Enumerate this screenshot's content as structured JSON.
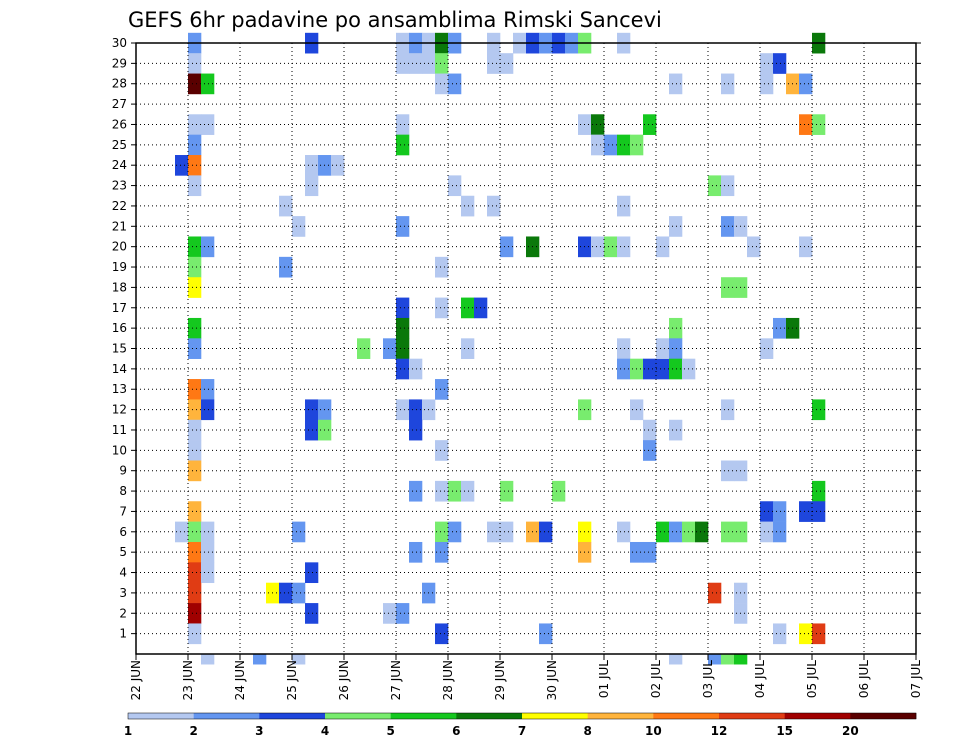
{
  "chart_data": {
    "type": "heatmap",
    "title": "GEFS 6hr padavine po ansamblima Rimski Sancevi",
    "x_tick_labels": [
      "22 JUN",
      "23 JUN",
      "24 JUN",
      "25 JUN",
      "26 JUN",
      "27 JUN",
      "28 JUN",
      "29 JUN",
      "30 JUN",
      "01 JUL",
      "02 JUL",
      "03 JUL",
      "04 JUL",
      "05 JUL",
      "06 JUL",
      "07 JUL"
    ],
    "y_tick_labels": [
      "1",
      "2",
      "3",
      "4",
      "5",
      "6",
      "7",
      "8",
      "9",
      "10",
      "11",
      "12",
      "13",
      "14",
      "15",
      "16",
      "17",
      "18",
      "19",
      "20",
      "21",
      "22",
      "23",
      "24",
      "25",
      "26",
      "27",
      "28",
      "29",
      "30"
    ],
    "x_unit": "6-hour step (4 per day), starting 22 JUN",
    "y_range": [
      0,
      30
    ],
    "grid": true,
    "colorbar": {
      "labels": [
        "1",
        "2",
        "3",
        "4",
        "5",
        "6",
        "7",
        "8",
        "10",
        "12",
        "15",
        "20"
      ],
      "colors": [
        "#b4c8f0",
        "#6496f0",
        "#1e46dc",
        "#78ec6e",
        "#14c81e",
        "#0a780a",
        "#ffff00",
        "#ffb43c",
        "#ff7814",
        "#e03c14",
        "#a00000",
        "#5a0000"
      ]
    },
    "color_scale_note": "c = color index 0..11 into colorbar.colors",
    "cells": [
      {
        "x": 4,
        "y": 30,
        "c": 1
      },
      {
        "x": 4,
        "y": 29,
        "c": 0
      },
      {
        "x": 4,
        "y": 28,
        "c": 11
      },
      {
        "x": 5,
        "y": 28,
        "c": 4
      },
      {
        "x": 4,
        "y": 26,
        "c": 0
      },
      {
        "x": 5,
        "y": 26,
        "c": 0
      },
      {
        "x": 4,
        "y": 25,
        "c": 1
      },
      {
        "x": 3,
        "y": 24,
        "c": 2
      },
      {
        "x": 4,
        "y": 24,
        "c": 8
      },
      {
        "x": 4,
        "y": 23,
        "c": 0
      },
      {
        "x": 4,
        "y": 20,
        "c": 4
      },
      {
        "x": 5,
        "y": 20,
        "c": 1
      },
      {
        "x": 4,
        "y": 19,
        "c": 3
      },
      {
        "x": 4,
        "y": 18,
        "c": 6
      },
      {
        "x": 4,
        "y": 16,
        "c": 4
      },
      {
        "x": 4,
        "y": 15,
        "c": 1
      },
      {
        "x": 4,
        "y": 13,
        "c": 8
      },
      {
        "x": 5,
        "y": 13,
        "c": 1
      },
      {
        "x": 4,
        "y": 12,
        "c": 7
      },
      {
        "x": 5,
        "y": 12,
        "c": 2
      },
      {
        "x": 4,
        "y": 11,
        "c": 0
      },
      {
        "x": 4,
        "y": 10,
        "c": 0
      },
      {
        "x": 4,
        "y": 9,
        "c": 7
      },
      {
        "x": 4,
        "y": 7,
        "c": 7
      },
      {
        "x": 3,
        "y": 6,
        "c": 0
      },
      {
        "x": 4,
        "y": 6,
        "c": 3
      },
      {
        "x": 5,
        "y": 6,
        "c": 0
      },
      {
        "x": 4,
        "y": 5,
        "c": 8
      },
      {
        "x": 5,
        "y": 5,
        "c": 0
      },
      {
        "x": 4,
        "y": 4,
        "c": 9
      },
      {
        "x": 5,
        "y": 4,
        "c": 0
      },
      {
        "x": 4,
        "y": 3,
        "c": 9
      },
      {
        "x": 4,
        "y": 2,
        "c": 10
      },
      {
        "x": 4,
        "y": 1,
        "c": 0
      },
      {
        "x": 5,
        "y": 0,
        "c": 0
      },
      {
        "x": 9,
        "y": 0,
        "c": 1
      },
      {
        "x": 11,
        "y": 22,
        "c": 0
      },
      {
        "x": 12,
        "y": 21,
        "c": 0
      },
      {
        "x": 11,
        "y": 19,
        "c": 1
      },
      {
        "x": 12,
        "y": 6,
        "c": 1
      },
      {
        "x": 10,
        "y": 3,
        "c": 6
      },
      {
        "x": 11,
        "y": 3,
        "c": 2
      },
      {
        "x": 12,
        "y": 3,
        "c": 1
      },
      {
        "x": 12,
        "y": 0,
        "c": 0
      },
      {
        "x": 13,
        "y": 30,
        "c": 2
      },
      {
        "x": 13,
        "y": 24,
        "c": 0
      },
      {
        "x": 14,
        "y": 24,
        "c": 1
      },
      {
        "x": 15,
        "y": 24,
        "c": 0
      },
      {
        "x": 13,
        "y": 23,
        "c": 0
      },
      {
        "x": 13,
        "y": 12,
        "c": 2
      },
      {
        "x": 14,
        "y": 12,
        "c": 1
      },
      {
        "x": 13,
        "y": 11,
        "c": 2
      },
      {
        "x": 14,
        "y": 11,
        "c": 3
      },
      {
        "x": 13,
        "y": 4,
        "c": 2
      },
      {
        "x": 13,
        "y": 2,
        "c": 2
      },
      {
        "x": 17,
        "y": 15,
        "c": 3
      },
      {
        "x": 19,
        "y": 15,
        "c": 1
      },
      {
        "x": 20,
        "y": 30,
        "c": 0
      },
      {
        "x": 21,
        "y": 30,
        "c": 1
      },
      {
        "x": 22,
        "y": 30,
        "c": 0
      },
      {
        "x": 23,
        "y": 30,
        "c": 5
      },
      {
        "x": 24,
        "y": 30,
        "c": 1
      },
      {
        "x": 20,
        "y": 29,
        "c": 0
      },
      {
        "x": 21,
        "y": 29,
        "c": 0
      },
      {
        "x": 22,
        "y": 29,
        "c": 0
      },
      {
        "x": 23,
        "y": 29,
        "c": 3
      },
      {
        "x": 23,
        "y": 28,
        "c": 0
      },
      {
        "x": 24,
        "y": 28,
        "c": 1
      },
      {
        "x": 20,
        "y": 26,
        "c": 0
      },
      {
        "x": 20,
        "y": 25,
        "c": 4
      },
      {
        "x": 24,
        "y": 23,
        "c": 0
      },
      {
        "x": 25,
        "y": 22,
        "c": 0
      },
      {
        "x": 20,
        "y": 21,
        "c": 1
      },
      {
        "x": 23,
        "y": 19,
        "c": 0
      },
      {
        "x": 20,
        "y": 17,
        "c": 2
      },
      {
        "x": 23,
        "y": 17,
        "c": 0
      },
      {
        "x": 25,
        "y": 17,
        "c": 4
      },
      {
        "x": 26,
        "y": 17,
        "c": 2
      },
      {
        "x": 20,
        "y": 16,
        "c": 5
      },
      {
        "x": 20,
        "y": 15,
        "c": 5
      },
      {
        "x": 25,
        "y": 15,
        "c": 0
      },
      {
        "x": 20,
        "y": 14,
        "c": 2
      },
      {
        "x": 21,
        "y": 14,
        "c": 0
      },
      {
        "x": 23,
        "y": 13,
        "c": 1
      },
      {
        "x": 20,
        "y": 12,
        "c": 0
      },
      {
        "x": 21,
        "y": 12,
        "c": 2
      },
      {
        "x": 22,
        "y": 12,
        "c": 0
      },
      {
        "x": 21,
        "y": 11,
        "c": 2
      },
      {
        "x": 23,
        "y": 10,
        "c": 0
      },
      {
        "x": 21,
        "y": 8,
        "c": 1
      },
      {
        "x": 23,
        "y": 8,
        "c": 0
      },
      {
        "x": 24,
        "y": 8,
        "c": 3
      },
      {
        "x": 25,
        "y": 8,
        "c": 0
      },
      {
        "x": 23,
        "y": 6,
        "c": 3
      },
      {
        "x": 24,
        "y": 6,
        "c": 1
      },
      {
        "x": 21,
        "y": 5,
        "c": 1
      },
      {
        "x": 23,
        "y": 5,
        "c": 1
      },
      {
        "x": 22,
        "y": 3,
        "c": 1
      },
      {
        "x": 19,
        "y": 2,
        "c": 0
      },
      {
        "x": 20,
        "y": 2,
        "c": 1
      },
      {
        "x": 23,
        "y": 1,
        "c": 2
      },
      {
        "x": 27,
        "y": 30,
        "c": 0
      },
      {
        "x": 27,
        "y": 29,
        "c": 0
      },
      {
        "x": 28,
        "y": 29,
        "c": 0
      },
      {
        "x": 27,
        "y": 22,
        "c": 0
      },
      {
        "x": 28,
        "y": 20,
        "c": 1
      },
      {
        "x": 28,
        "y": 8,
        "c": 3
      },
      {
        "x": 27,
        "y": 6,
        "c": 0
      },
      {
        "x": 28,
        "y": 6,
        "c": 0
      },
      {
        "x": 29,
        "y": 30,
        "c": 0
      },
      {
        "x": 30,
        "y": 30,
        "c": 2
      },
      {
        "x": 31,
        "y": 30,
        "c": 1
      },
      {
        "x": 30,
        "y": 20,
        "c": 5
      },
      {
        "x": 30,
        "y": 6,
        "c": 7
      },
      {
        "x": 31,
        "y": 6,
        "c": 2
      },
      {
        "x": 32,
        "y": 8,
        "c": 3
      },
      {
        "x": 31,
        "y": 1,
        "c": 1
      },
      {
        "x": 32,
        "y": 30,
        "c": 2
      },
      {
        "x": 33,
        "y": 30,
        "c": 1
      },
      {
        "x": 34,
        "y": 30,
        "c": 3
      },
      {
        "x": 34,
        "y": 26,
        "c": 0
      },
      {
        "x": 35,
        "y": 26,
        "c": 5
      },
      {
        "x": 35,
        "y": 25,
        "c": 0
      },
      {
        "x": 34,
        "y": 20,
        "c": 2
      },
      {
        "x": 35,
        "y": 20,
        "c": 0
      },
      {
        "x": 34,
        "y": 12,
        "c": 3
      },
      {
        "x": 34,
        "y": 6,
        "c": 6
      },
      {
        "x": 34,
        "y": 5,
        "c": 7
      },
      {
        "x": 37,
        "y": 30,
        "c": 0
      },
      {
        "x": 36,
        "y": 25,
        "c": 1
      },
      {
        "x": 37,
        "y": 25,
        "c": 4
      },
      {
        "x": 38,
        "y": 25,
        "c": 3
      },
      {
        "x": 39,
        "y": 26,
        "c": 4
      },
      {
        "x": 37,
        "y": 22,
        "c": 0
      },
      {
        "x": 36,
        "y": 20,
        "c": 3
      },
      {
        "x": 37,
        "y": 20,
        "c": 0
      },
      {
        "x": 37,
        "y": 15,
        "c": 0
      },
      {
        "x": 37,
        "y": 14,
        "c": 1
      },
      {
        "x": 38,
        "y": 14,
        "c": 3
      },
      {
        "x": 39,
        "y": 14,
        "c": 2
      },
      {
        "x": 40,
        "y": 14,
        "c": 2
      },
      {
        "x": 38,
        "y": 12,
        "c": 0
      },
      {
        "x": 39,
        "y": 11,
        "c": 0
      },
      {
        "x": 38,
        "y": 5,
        "c": 1
      },
      {
        "x": 39,
        "y": 5,
        "c": 1
      },
      {
        "x": 37,
        "y": 6,
        "c": 0
      },
      {
        "x": 39,
        "y": 10,
        "c": 1
      },
      {
        "x": 41,
        "y": 28,
        "c": 0
      },
      {
        "x": 41,
        "y": 21,
        "c": 0
      },
      {
        "x": 40,
        "y": 20,
        "c": 0
      },
      {
        "x": 41,
        "y": 16,
        "c": 3
      },
      {
        "x": 40,
        "y": 15,
        "c": 0
      },
      {
        "x": 41,
        "y": 15,
        "c": 1
      },
      {
        "x": 41,
        "y": 14,
        "c": 4
      },
      {
        "x": 42,
        "y": 14,
        "c": 0
      },
      {
        "x": 40,
        "y": 6,
        "c": 4
      },
      {
        "x": 41,
        "y": 6,
        "c": 1
      },
      {
        "x": 42,
        "y": 6,
        "c": 3
      },
      {
        "x": 43,
        "y": 6,
        "c": 5
      },
      {
        "x": 41,
        "y": 0,
        "c": 0
      },
      {
        "x": 41,
        "y": 11,
        "c": 0
      },
      {
        "x": 45,
        "y": 28,
        "c": 0
      },
      {
        "x": 44,
        "y": 23,
        "c": 3
      },
      {
        "x": 45,
        "y": 23,
        "c": 0
      },
      {
        "x": 45,
        "y": 21,
        "c": 1
      },
      {
        "x": 46,
        "y": 21,
        "c": 0
      },
      {
        "x": 47,
        "y": 20,
        "c": 0
      },
      {
        "x": 45,
        "y": 18,
        "c": 3
      },
      {
        "x": 46,
        "y": 18,
        "c": 3
      },
      {
        "x": 45,
        "y": 12,
        "c": 0
      },
      {
        "x": 45,
        "y": 9,
        "c": 0
      },
      {
        "x": 46,
        "y": 9,
        "c": 0
      },
      {
        "x": 45,
        "y": 6,
        "c": 3
      },
      {
        "x": 46,
        "y": 6,
        "c": 3
      },
      {
        "x": 44,
        "y": 3,
        "c": 9
      },
      {
        "x": 46,
        "y": 3,
        "c": 0
      },
      {
        "x": 46,
        "y": 2,
        "c": 0
      },
      {
        "x": 44,
        "y": 0,
        "c": 1
      },
      {
        "x": 45,
        "y": 0,
        "c": 3
      },
      {
        "x": 46,
        "y": 0,
        "c": 4
      },
      {
        "x": 48,
        "y": 29,
        "c": 0
      },
      {
        "x": 49,
        "y": 29,
        "c": 2
      },
      {
        "x": 48,
        "y": 28,
        "c": 0
      },
      {
        "x": 50,
        "y": 28,
        "c": 7
      },
      {
        "x": 51,
        "y": 28,
        "c": 1
      },
      {
        "x": 51,
        "y": 26,
        "c": 8
      },
      {
        "x": 51,
        "y": 20,
        "c": 0
      },
      {
        "x": 49,
        "y": 16,
        "c": 1
      },
      {
        "x": 50,
        "y": 16,
        "c": 5
      },
      {
        "x": 48,
        "y": 15,
        "c": 0
      },
      {
        "x": 48,
        "y": 7,
        "c": 2
      },
      {
        "x": 49,
        "y": 7,
        "c": 1
      },
      {
        "x": 48,
        "y": 6,
        "c": 0
      },
      {
        "x": 49,
        "y": 6,
        "c": 1
      },
      {
        "x": 51,
        "y": 7,
        "c": 2
      },
      {
        "x": 49,
        "y": 1,
        "c": 0
      },
      {
        "x": 51,
        "y": 1,
        "c": 6
      },
      {
        "x": 52,
        "y": 1,
        "c": 9
      },
      {
        "x": 52,
        "y": 30,
        "c": 5
      },
      {
        "x": 52,
        "y": 26,
        "c": 3
      },
      {
        "x": 52,
        "y": 12,
        "c": 4
      },
      {
        "x": 52,
        "y": 8,
        "c": 4
      },
      {
        "x": 52,
        "y": 7,
        "c": 2
      }
    ]
  }
}
